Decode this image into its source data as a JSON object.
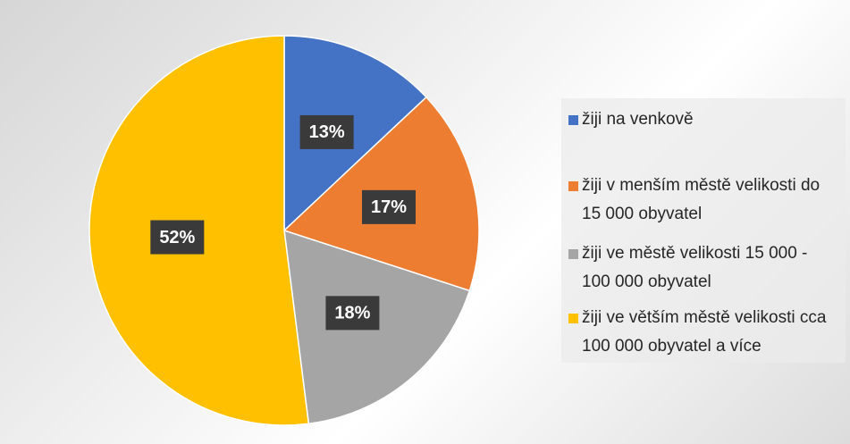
{
  "chart_data": {
    "type": "pie",
    "categories": [
      "žiji na venkově",
      "žiji v menším městě velikosti do 15 000 obyvatel",
      "žiji ve městě velikosti 15 000 - 100 000 obyvatel",
      "žiji ve větším městě velikosti cca 100 000 obyvatel a více"
    ],
    "values": [
      13,
      17,
      18,
      52
    ],
    "value_labels": [
      "13%",
      "17%",
      "18%",
      "52%"
    ],
    "colors": [
      "#4472c4",
      "#ed7d31",
      "#a5a5a5",
      "#ffc000"
    ],
    "legend": "right"
  }
}
